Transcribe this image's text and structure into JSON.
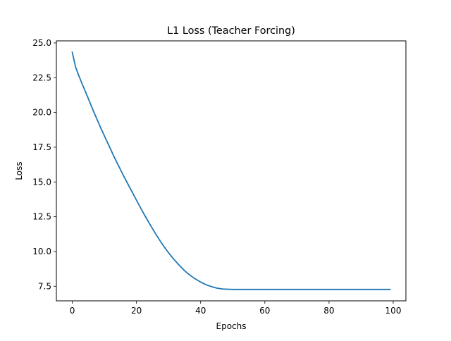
{
  "chart_data": {
    "type": "line",
    "title": "L1 Loss (Teacher Forcing)",
    "xlabel": "Epochs",
    "ylabel": "Loss",
    "xlim": [
      -4.95,
      103.95
    ],
    "ylim": [
      6.45,
      25.15
    ],
    "xticks": [
      0,
      20,
      40,
      60,
      80,
      100
    ],
    "xtick_labels": [
      "0",
      "20",
      "40",
      "60",
      "80",
      "100"
    ],
    "yticks": [
      7.5,
      10.0,
      12.5,
      15.0,
      17.5,
      20.0,
      22.5,
      25.0
    ],
    "ytick_labels": [
      "7.5",
      "10.0",
      "12.5",
      "15.0",
      "17.5",
      "20.0",
      "22.5",
      "25.0"
    ],
    "grid": false,
    "legend": "none",
    "series": [
      {
        "color": "#1f77b4",
        "x": [
          0,
          1,
          2,
          3,
          4,
          5,
          6,
          7,
          8,
          9,
          10,
          11,
          12,
          13,
          14,
          15,
          16,
          17,
          18,
          19,
          20,
          21,
          22,
          23,
          24,
          25,
          26,
          27,
          28,
          29,
          30,
          31,
          32,
          33,
          34,
          35,
          36,
          37,
          38,
          39,
          40,
          41,
          42,
          43,
          44,
          45,
          46,
          47,
          48,
          49,
          50,
          51,
          52,
          53,
          54,
          55,
          56,
          57,
          58,
          59,
          60,
          61,
          62,
          63,
          64,
          65,
          66,
          67,
          68,
          69,
          70,
          71,
          72,
          73,
          74,
          75,
          76,
          77,
          78,
          79,
          80,
          81,
          82,
          83,
          84,
          85,
          86,
          87,
          88,
          89,
          90,
          91,
          92,
          93,
          94,
          95,
          96,
          97,
          98,
          99
        ],
        "values": [
          24.33,
          23.3,
          22.67,
          22.1,
          21.55,
          21.0,
          20.43,
          19.88,
          19.35,
          18.83,
          18.32,
          17.82,
          17.33,
          16.83,
          16.36,
          15.9,
          15.44,
          15.0,
          14.56,
          14.13,
          13.69,
          13.26,
          12.84,
          12.43,
          12.03,
          11.64,
          11.26,
          10.9,
          10.55,
          10.22,
          9.91,
          9.62,
          9.35,
          9.09,
          8.85,
          8.62,
          8.42,
          8.24,
          8.08,
          7.94,
          7.8,
          7.68,
          7.58,
          7.5,
          7.43,
          7.37,
          7.33,
          7.3,
          7.29,
          7.28,
          7.27,
          7.27,
          7.27,
          7.27,
          7.27,
          7.27,
          7.27,
          7.27,
          7.27,
          7.27,
          7.27,
          7.27,
          7.27,
          7.27,
          7.27,
          7.27,
          7.27,
          7.27,
          7.27,
          7.27,
          7.27,
          7.27,
          7.27,
          7.27,
          7.27,
          7.27,
          7.27,
          7.27,
          7.27,
          7.27,
          7.27,
          7.27,
          7.27,
          7.27,
          7.27,
          7.27,
          7.27,
          7.27,
          7.27,
          7.27,
          7.27,
          7.27,
          7.27,
          7.27,
          7.27,
          7.27,
          7.27,
          7.27,
          7.27,
          7.27
        ]
      }
    ]
  }
}
